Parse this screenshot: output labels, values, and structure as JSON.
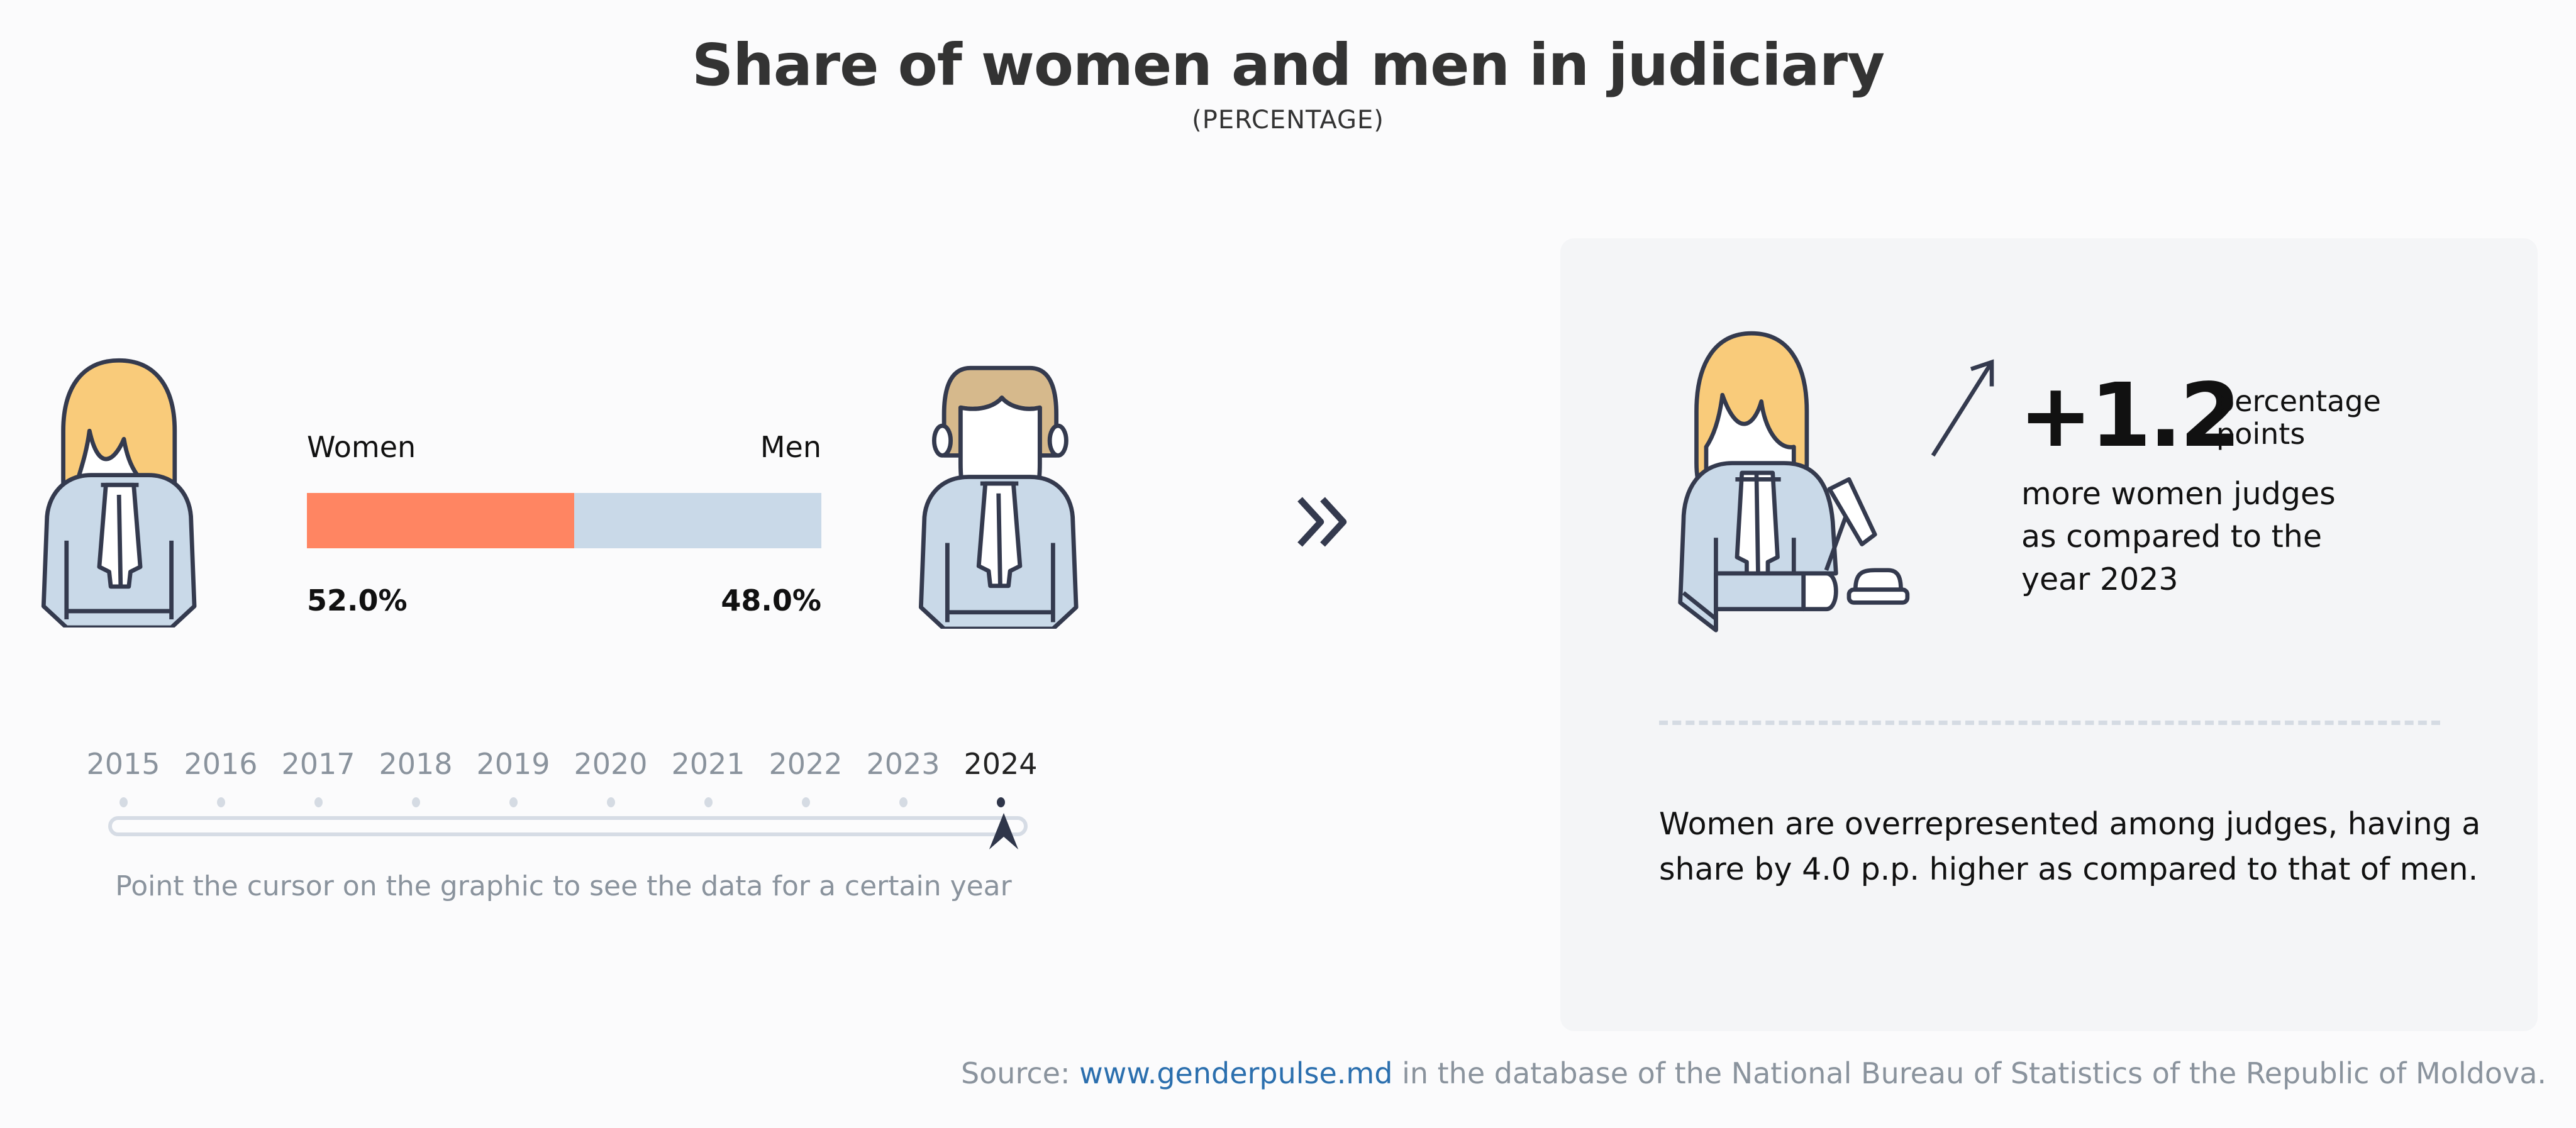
{
  "title": "Share of women and men in judiciary",
  "subtitle": "(PERCENTAGE)",
  "colors": {
    "women": "#ff8562",
    "men": "#c9d9e8",
    "hair_women": "#f9cb7a",
    "hair_men": "#d6b98c",
    "outline": "#343a4e",
    "robe": "#c9d9e8"
  },
  "comparison": {
    "women_label": "Women",
    "men_label": "Men",
    "women_value": "52.0%",
    "men_value": "48.0%",
    "women_share": 52.0,
    "men_share": 48.0
  },
  "timeline": {
    "years": [
      "2015",
      "2016",
      "2017",
      "2018",
      "2019",
      "2020",
      "2021",
      "2022",
      "2023",
      "2024"
    ],
    "selected": "2024",
    "hint": "Point the cursor on the graphic to see the data for a certain year"
  },
  "next_icon": "double-chevron-right-icon",
  "summary": {
    "change_value": "+1.2",
    "change_unit_line1": "percentage",
    "change_unit_line2": "points",
    "change_text": "more women judges as compared to the year 2023",
    "note": "Women are overrepresented among judges, having a share by 4.0 p.p. higher as compared to that of men."
  },
  "source": {
    "prefix": "Source:",
    "link": "www.genderpulse.md",
    "suffix": "in the database of the National Bureau of Statistics of the Republic of Moldova."
  }
}
